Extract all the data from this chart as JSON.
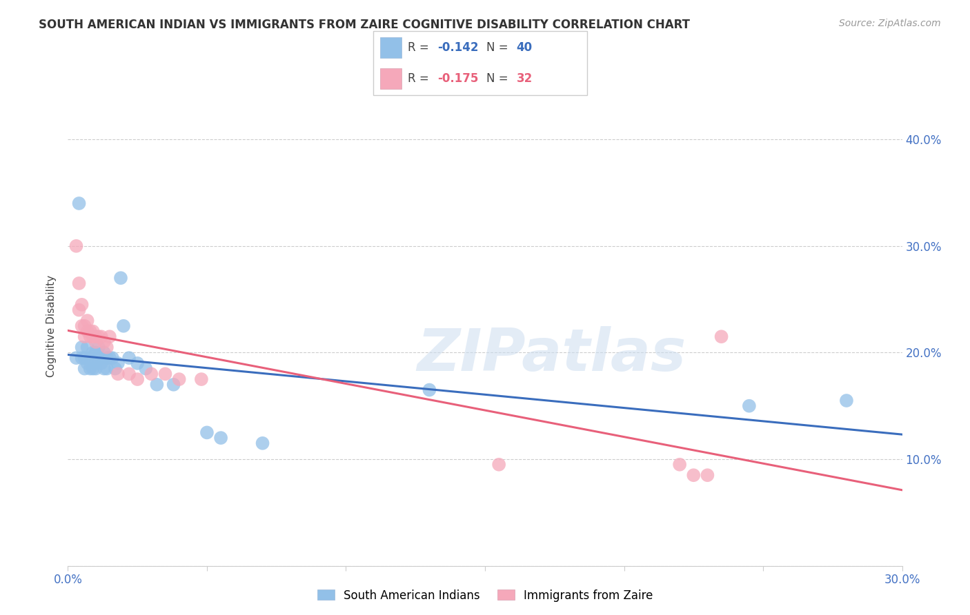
{
  "title": "SOUTH AMERICAN INDIAN VS IMMIGRANTS FROM ZAIRE COGNITIVE DISABILITY CORRELATION CHART",
  "source": "Source: ZipAtlas.com",
  "ylabel_label": "Cognitive Disability",
  "xlim": [
    0.0,
    0.3
  ],
  "ylim": [
    0.0,
    0.45
  ],
  "blue_R": -0.142,
  "blue_N": 40,
  "pink_R": -0.175,
  "pink_N": 32,
  "blue_color": "#92c0e8",
  "pink_color": "#f5a8ba",
  "blue_line_color": "#3a6dbd",
  "pink_line_color": "#e8607a",
  "watermark": "ZIPatlas",
  "blue_x": [
    0.003,
    0.004,
    0.005,
    0.005,
    0.006,
    0.006,
    0.007,
    0.007,
    0.008,
    0.008,
    0.009,
    0.009,
    0.01,
    0.01,
    0.01,
    0.011,
    0.011,
    0.012,
    0.012,
    0.013,
    0.013,
    0.014,
    0.014,
    0.015,
    0.016,
    0.017,
    0.018,
    0.019,
    0.02,
    0.022,
    0.025,
    0.028,
    0.032,
    0.038,
    0.05,
    0.055,
    0.07,
    0.13,
    0.245,
    0.28
  ],
  "blue_y": [
    0.195,
    0.34,
    0.205,
    0.195,
    0.185,
    0.195,
    0.19,
    0.205,
    0.185,
    0.195,
    0.185,
    0.2,
    0.19,
    0.185,
    0.2,
    0.195,
    0.205,
    0.195,
    0.19,
    0.2,
    0.185,
    0.195,
    0.185,
    0.195,
    0.195,
    0.185,
    0.19,
    0.27,
    0.225,
    0.195,
    0.19,
    0.185,
    0.17,
    0.17,
    0.125,
    0.12,
    0.115,
    0.165,
    0.15,
    0.155
  ],
  "pink_x": [
    0.003,
    0.004,
    0.004,
    0.005,
    0.005,
    0.006,
    0.006,
    0.007,
    0.007,
    0.008,
    0.008,
    0.009,
    0.009,
    0.01,
    0.01,
    0.011,
    0.012,
    0.013,
    0.014,
    0.015,
    0.018,
    0.022,
    0.025,
    0.03,
    0.035,
    0.04,
    0.048,
    0.155,
    0.22,
    0.225,
    0.23,
    0.235
  ],
  "pink_y": [
    0.3,
    0.265,
    0.24,
    0.245,
    0.225,
    0.225,
    0.215,
    0.22,
    0.23,
    0.215,
    0.22,
    0.215,
    0.22,
    0.215,
    0.21,
    0.215,
    0.215,
    0.21,
    0.205,
    0.215,
    0.18,
    0.18,
    0.175,
    0.18,
    0.18,
    0.175,
    0.175,
    0.095,
    0.095,
    0.085,
    0.085,
    0.215
  ]
}
